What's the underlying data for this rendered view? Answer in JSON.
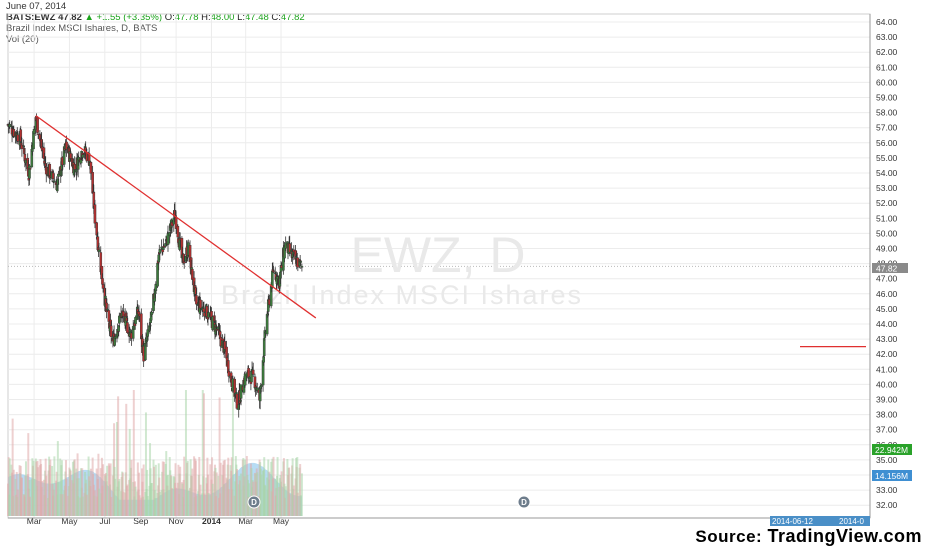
{
  "header": {
    "date": "June 07, 2014",
    "symbol": "BATS:EWZ",
    "last": "47.82",
    "change": "+1.55 (+3.35%)",
    "o_label": "O:",
    "o_value": "47.78",
    "h_label": "H:",
    "h_value": "48.00",
    "l_label": "L:",
    "l_value": "47.48",
    "c_label": "C:",
    "c_value": "47.82",
    "title": "Brazil Index MSCI Ishares, D, BATS",
    "volume_label": "Vol (20)"
  },
  "watermark": {
    "ticker": "EWZ, D",
    "name": "Brazil Index MSCI Ishares"
  },
  "badges": {
    "price": "47.82",
    "vol_ma": "22.942M",
    "volume": "14.156M"
  },
  "events": [
    "D",
    "D"
  ],
  "date_range": [
    "2014-06-12",
    "2014-0"
  ],
  "footer": {
    "source_label": "Source:",
    "brand": "TradingView.com"
  },
  "colors": {
    "up": "#3c7a3c",
    "down": "#b03030",
    "trendline": "#e03030",
    "volume_area": "#9fd0f0",
    "volume_bar": "#aab4c8"
  },
  "chart_data": {
    "type": "candlestick",
    "title": "Brazil Index MSCI Ishares, D, BATS",
    "y_ticks": [
      "64.00",
      "63.00",
      "62.00",
      "61.00",
      "60.00",
      "59.00",
      "58.00",
      "57.00",
      "56.00",
      "55.00",
      "54.00",
      "53.00",
      "52.00",
      "51.00",
      "50.00",
      "49.00",
      "48.00",
      "47.00",
      "46.00",
      "45.00",
      "44.00",
      "43.00",
      "42.00",
      "41.00",
      "40.00",
      "39.00",
      "38.00",
      "37.00",
      "36.00",
      "35.00",
      "34.00",
      "33.00",
      "32.00"
    ],
    "ylim": [
      31.5,
      64.5
    ],
    "x_ticks": [
      "Mar",
      "May",
      "Jul",
      "Sep",
      "Nov",
      "2014",
      "Mar",
      "May"
    ],
    "trendline": {
      "from": {
        "date": "2013-03-04",
        "price": 57.8
      },
      "to": {
        "date": "2014-06-30",
        "price": 44.4
      }
    },
    "support_level": 42.5,
    "price_path": [
      [
        "2013-01-15",
        57.2
      ],
      [
        "2013-02-05",
        56.3
      ],
      [
        "2013-02-20",
        54.0
      ],
      [
        "2013-03-04",
        57.7
      ],
      [
        "2013-03-20",
        54.5
      ],
      [
        "2013-04-10",
        53.2
      ],
      [
        "2013-04-25",
        55.8
      ],
      [
        "2013-05-10",
        54.3
      ],
      [
        "2013-05-24",
        55.6
      ],
      [
        "2013-06-05",
        54.9
      ],
      [
        "2013-06-14",
        51.0
      ],
      [
        "2013-06-25",
        47.5
      ],
      [
        "2013-07-05",
        44.5
      ],
      [
        "2013-07-15",
        42.8
      ],
      [
        "2013-07-30",
        44.7
      ],
      [
        "2013-08-15",
        43.3
      ],
      [
        "2013-08-28",
        44.9
      ],
      [
        "2013-09-06",
        41.9
      ],
      [
        "2013-09-20",
        44.5
      ],
      [
        "2013-10-02",
        48.6
      ],
      [
        "2013-10-16",
        49.5
      ],
      [
        "2013-10-30",
        51.3
      ],
      [
        "2013-11-12",
        48.1
      ],
      [
        "2013-11-22",
        49.0
      ],
      [
        "2013-12-06",
        45.3
      ],
      [
        "2013-12-20",
        45.0
      ],
      [
        "2014-01-08",
        43.8
      ],
      [
        "2014-01-22",
        42.5
      ],
      [
        "2014-02-05",
        40.2
      ],
      [
        "2014-02-15",
        38.7
      ],
      [
        "2014-03-01",
        40.6
      ],
      [
        "2014-03-15",
        40.5
      ],
      [
        "2014-03-25",
        39.0
      ],
      [
        "2014-04-05",
        44.0
      ],
      [
        "2014-04-18",
        47.6
      ],
      [
        "2014-04-28",
        46.8
      ],
      [
        "2014-05-08",
        49.3
      ],
      [
        "2014-05-20",
        48.5
      ],
      [
        "2014-06-05",
        47.82
      ]
    ],
    "volume_ma_millions": 22.942,
    "last_volume_millions": 14.156
  }
}
